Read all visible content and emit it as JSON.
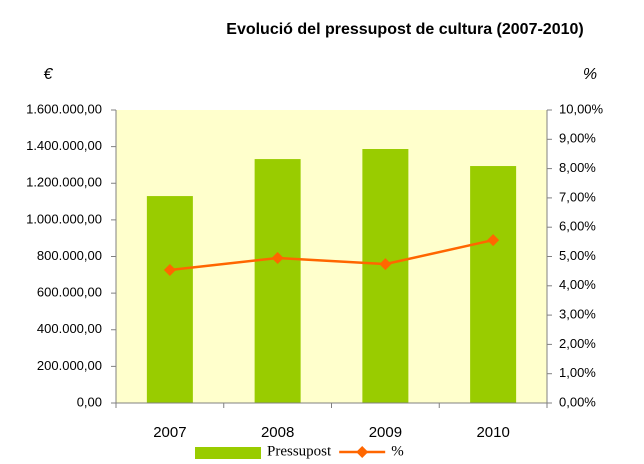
{
  "chart_data": {
    "type": "bar_line",
    "title": "Evolució del pressupost de cultura (2007-2010)",
    "y_label": "€",
    "y2_label": "%",
    "categories": [
      "2007",
      "2008",
      "2009",
      "2010"
    ],
    "series": [
      {
        "name": "Pressupost",
        "color": "#99cc00",
        "type": "bar",
        "values": [
          1130000,
          1332000,
          1387000,
          1294000
        ]
      },
      {
        "name": "%",
        "color": "#ff6600",
        "type": "line",
        "axis": "y2",
        "values": [
          4.54,
          4.95,
          4.74,
          5.56
        ]
      }
    ],
    "ylim": [
      0,
      1600000
    ],
    "yticks": [
      {
        "value": 0,
        "label": "0,00"
      },
      {
        "value": 200000,
        "label": "200.000,00"
      },
      {
        "value": 400000,
        "label": "400.000,00"
      },
      {
        "value": 600000,
        "label": "600.000,00"
      },
      {
        "value": 800000,
        "label": "800.000,00"
      },
      {
        "value": 1000000,
        "label": "1.000.000,00"
      },
      {
        "value": 1200000,
        "label": "1.200.000,00"
      },
      {
        "value": 1400000,
        "label": "1.400.000,00"
      },
      {
        "value": 1600000,
        "label": "1.600.000,00"
      }
    ],
    "y2lim": [
      0,
      10
    ],
    "y2ticks": [
      {
        "value": 0,
        "label": "0,00%"
      },
      {
        "value": 1,
        "label": "1,00%"
      },
      {
        "value": 2,
        "label": "2,00%"
      },
      {
        "value": 3,
        "label": "3,00%"
      },
      {
        "value": 4,
        "label": "4,00%"
      },
      {
        "value": 5,
        "label": "5,00%"
      },
      {
        "value": 6,
        "label": "6,00%"
      },
      {
        "value": 7,
        "label": "7,00%"
      },
      {
        "value": 8,
        "label": "8,00%"
      },
      {
        "value": 9,
        "label": "9,00%"
      },
      {
        "value": 10,
        "label": "10,00%"
      }
    ],
    "plot_background": "#ffffcc"
  }
}
